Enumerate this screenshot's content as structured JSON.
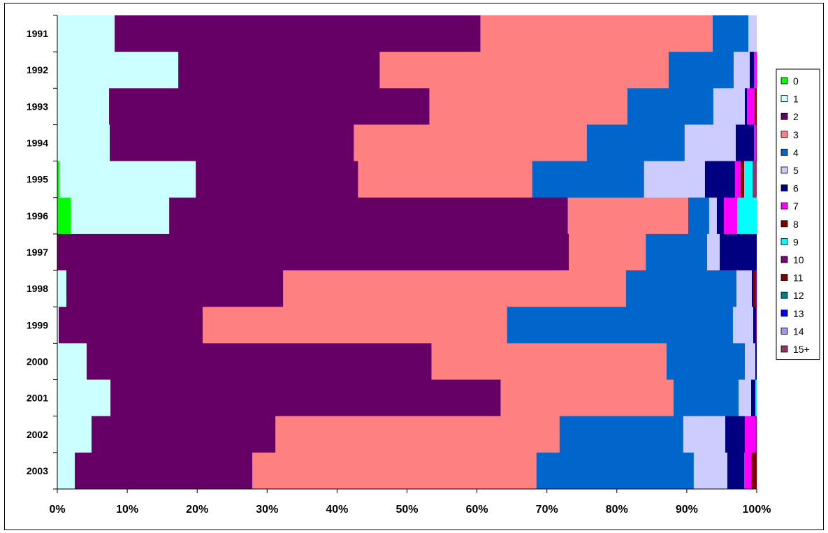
{
  "chart_data": {
    "type": "bar",
    "orientation": "horizontal",
    "stacked": "percent",
    "title": "",
    "xlabel": "",
    "ylabel": "",
    "xlim": [
      0,
      100
    ],
    "x_ticks": [
      "0%",
      "10%",
      "20%",
      "30%",
      "40%",
      "50%",
      "60%",
      "70%",
      "80%",
      "90%",
      "100%"
    ],
    "categories": [
      "1991",
      "1992",
      "1993",
      "1994",
      "1995",
      "1996",
      "1997",
      "1998",
      "1999",
      "2000",
      "2001",
      "2002",
      "2003"
    ],
    "legend_position": "right",
    "grid": false,
    "series": [
      {
        "name": "0",
        "color": "#00FF00",
        "values": [
          0,
          0,
          0,
          0,
          0.3,
          1.9,
          0,
          0,
          0,
          0,
          0,
          0,
          0
        ]
      },
      {
        "name": "1",
        "color": "#CCFFFF",
        "values": [
          8.2,
          17.3,
          7.4,
          7.5,
          19.5,
          14.1,
          0,
          1.3,
          0.2,
          4.2,
          7.6,
          4.9,
          2.5
        ]
      },
      {
        "name": "2",
        "color": "#660066",
        "values": [
          52.3,
          28.8,
          45.8,
          34.9,
          23.2,
          57.0,
          73.3,
          31.0,
          20.6,
          49.3,
          55.8,
          26.3,
          25.4
        ]
      },
      {
        "name": "3",
        "color": "#FF8080",
        "values": [
          33.2,
          41.3,
          28.3,
          33.3,
          24.9,
          17.2,
          11.0,
          49.0,
          43.5,
          33.6,
          24.7,
          40.6,
          40.6
        ]
      },
      {
        "name": "4",
        "color": "#0066CC",
        "values": [
          5.1,
          9.3,
          12.3,
          14.0,
          16.0,
          3.0,
          8.8,
          15.8,
          32.3,
          11.2,
          9.3,
          17.7,
          22.5
        ]
      },
      {
        "name": "5",
        "color": "#CCCCFF",
        "values": [
          1.2,
          2.3,
          4.5,
          7.3,
          8.7,
          1.1,
          1.8,
          2.2,
          2.9,
          1.5,
          1.8,
          6.0,
          4.8
        ]
      },
      {
        "name": "6",
        "color": "#000080",
        "values": [
          0,
          0.6,
          0.3,
          2.6,
          4.3,
          1.0,
          5.3,
          0.2,
          0.4,
          0.2,
          0.6,
          2.8,
          2.4
        ]
      },
      {
        "name": "7",
        "color": "#FF00FF",
        "values": [
          0,
          0.4,
          1.1,
          0.3,
          0.8,
          1.9,
          0,
          0,
          0,
          0,
          0,
          1.5,
          1.0
        ]
      },
      {
        "name": "8",
        "color": "#800000",
        "values": [
          0,
          0,
          0.3,
          0,
          0.5,
          0,
          0,
          0.3,
          0,
          0,
          0,
          0,
          0.3
        ]
      },
      {
        "name": "9",
        "color": "#00FFFF",
        "values": [
          0,
          0,
          0,
          0,
          1.2,
          2.8,
          0,
          0,
          0,
          0,
          0.2,
          0,
          0
        ]
      },
      {
        "name": "10",
        "color": "#800080",
        "values": [
          0,
          0,
          0,
          0.1,
          0,
          0,
          0,
          0.2,
          0.1,
          0,
          0,
          0.2,
          0
        ]
      },
      {
        "name": "11",
        "color": "#800000",
        "values": [
          0,
          0,
          0,
          0,
          0,
          0,
          0,
          0,
          0,
          0,
          0,
          0,
          0.5
        ]
      },
      {
        "name": "12",
        "color": "#008080",
        "values": [
          0,
          0,
          0,
          0,
          0,
          0,
          0,
          0,
          0,
          0,
          0,
          0,
          0
        ]
      },
      {
        "name": "13",
        "color": "#0000FF",
        "values": [
          0,
          0,
          0,
          0,
          0,
          0,
          0,
          0,
          0,
          0,
          0,
          0,
          0
        ]
      },
      {
        "name": "14",
        "color": "#9999FF",
        "values": [
          0,
          0,
          0,
          0,
          0,
          0,
          0,
          0,
          0,
          0,
          0,
          0,
          0
        ]
      },
      {
        "name": "15+",
        "color": "#993366",
        "values": [
          0,
          0,
          0,
          0,
          0.6,
          0,
          0,
          0,
          0,
          0,
          0,
          0,
          0
        ]
      }
    ]
  }
}
